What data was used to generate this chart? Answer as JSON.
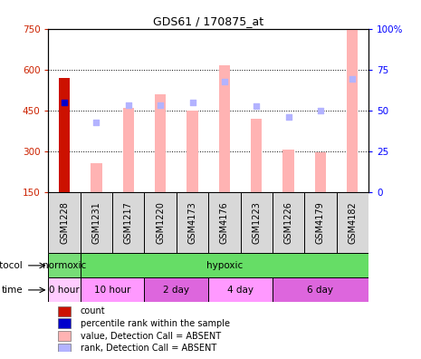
{
  "title": "GDS61 / 170875_at",
  "samples": [
    "GSM1228",
    "GSM1231",
    "GSM1217",
    "GSM1220",
    "GSM4173",
    "GSM4176",
    "GSM1223",
    "GSM1226",
    "GSM4179",
    "GSM4182"
  ],
  "bar_values": [
    570,
    255,
    460,
    510,
    450,
    615,
    420,
    305,
    295,
    745
  ],
  "rank_dots": [
    478,
    405,
    470,
    470,
    480,
    555,
    465,
    425,
    450,
    565
  ],
  "count_bar_index": 0,
  "count_rank_index": 0,
  "ylim": [
    150,
    750
  ],
  "y2lim": [
    0,
    100
  ],
  "yticks": [
    150,
    300,
    450,
    600,
    750
  ],
  "y2ticks": [
    0,
    25,
    50,
    75,
    100
  ],
  "bar_color_absent": "#ffb3b3",
  "rank_dot_color_absent": "#b3b3ff",
  "count_bar_color": "#cc1100",
  "count_rank_dot_color": "#0000cc",
  "cell_bg_color": "#d8d8d8",
  "protocol_groups": [
    {
      "label": "normoxic",
      "start": 0,
      "end": 1,
      "color": "#77dd77"
    },
    {
      "label": "hypoxic",
      "start": 1,
      "end": 10,
      "color": "#66dd66"
    }
  ],
  "time_groups": [
    {
      "label": "0 hour",
      "start": 0,
      "end": 1,
      "color": "#ffccff"
    },
    {
      "label": "10 hour",
      "start": 1,
      "end": 3,
      "color": "#ff99ff"
    },
    {
      "label": "2 day",
      "start": 3,
      "end": 5,
      "color": "#dd66dd"
    },
    {
      "label": "4 day",
      "start": 5,
      "end": 7,
      "color": "#ff99ff"
    },
    {
      "label": "6 day",
      "start": 7,
      "end": 10,
      "color": "#dd66dd"
    }
  ],
  "legend_items": [
    {
      "label": "count",
      "color": "#cc1100"
    },
    {
      "label": "percentile rank within the sample",
      "color": "#0000cc"
    },
    {
      "label": "value, Detection Call = ABSENT",
      "color": "#ffb3b3"
    },
    {
      "label": "rank, Detection Call = ABSENT",
      "color": "#b3b3ff"
    }
  ]
}
